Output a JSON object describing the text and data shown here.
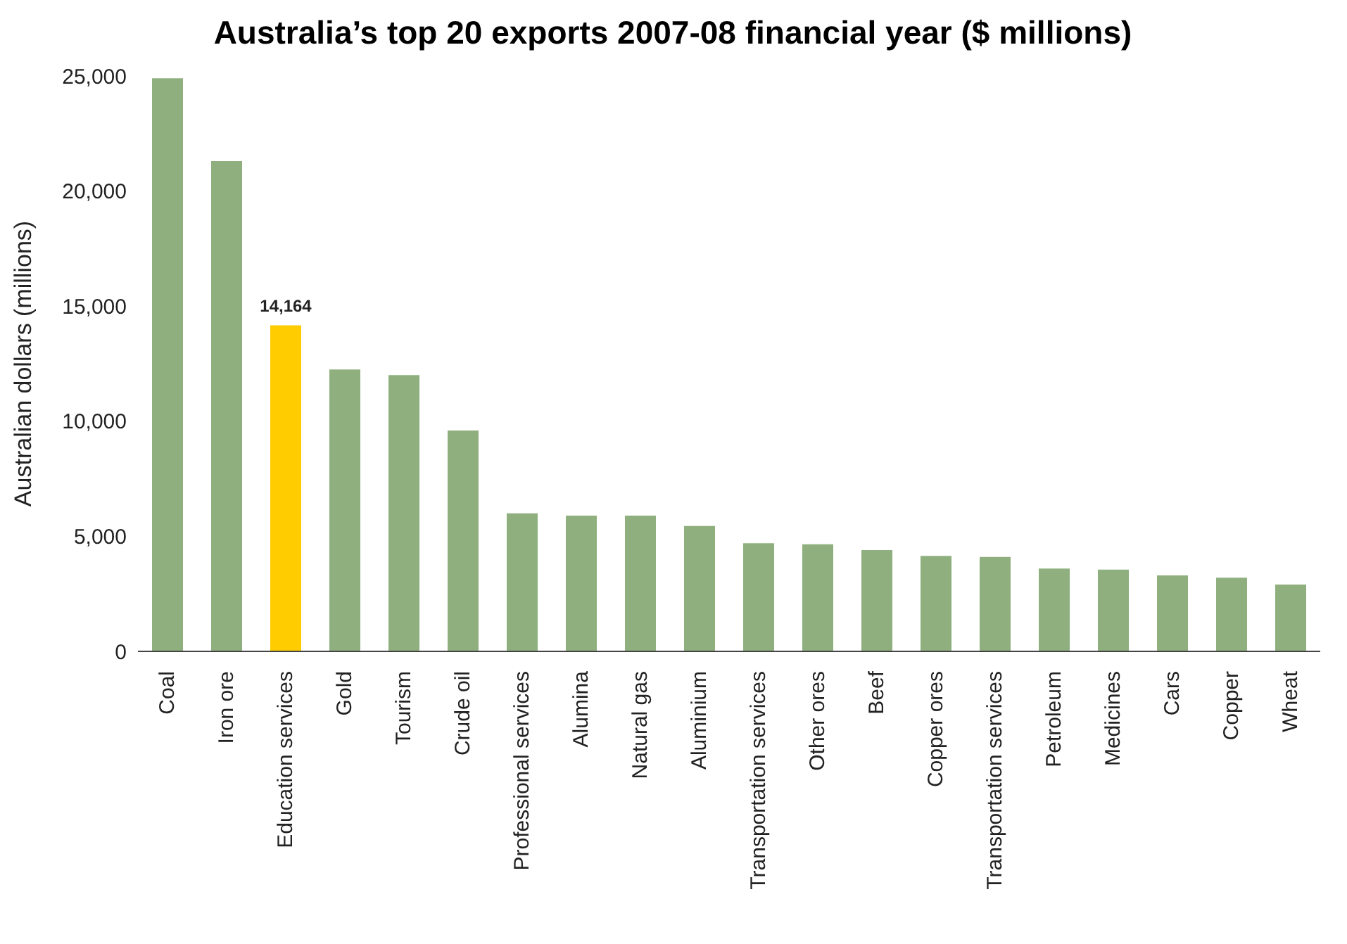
{
  "chart_data": {
    "type": "bar",
    "title": "Australia’s top 20 exports 2007-08 financial year ($ millions)",
    "ylabel": "Australian dollars (millions)",
    "categories": [
      "Coal",
      "Iron ore",
      "Education services",
      "Gold",
      "Tourism",
      "Crude oil",
      "Professional services",
      "Alumina",
      "Natural gas",
      "Aluminium",
      "Transportation services",
      "Other ores",
      "Beef",
      "Copper ores",
      "Transportation services",
      "Petroleum",
      "Medicines",
      "Cars",
      "Copper",
      "Wheat"
    ],
    "values": [
      24900,
      21300,
      14164,
      12250,
      12000,
      9600,
      6000,
      5900,
      5900,
      5450,
      4700,
      4650,
      4400,
      4150,
      4100,
      3600,
      3550,
      3300,
      3200,
      2900
    ],
    "colors": [
      "#8fb07e",
      "#8fb07e",
      "#ffcc00",
      "#8fb07e",
      "#8fb07e",
      "#8fb07e",
      "#8fb07e",
      "#8fb07e",
      "#8fb07e",
      "#8fb07e",
      "#8fb07e",
      "#8fb07e",
      "#8fb07e",
      "#8fb07e",
      "#8fb07e",
      "#8fb07e",
      "#8fb07e",
      "#8fb07e",
      "#8fb07e",
      "#8fb07e"
    ],
    "value_labels": [
      null,
      null,
      "14,164",
      null,
      null,
      null,
      null,
      null,
      null,
      null,
      null,
      null,
      null,
      null,
      null,
      null,
      null,
      null,
      null,
      null
    ],
    "ylim": [
      0,
      25000
    ],
    "yticks": [
      0,
      {
        "value": 5000,
        "label": "5,000"
      },
      {
        "value": 10000,
        "label": "10,000"
      },
      {
        "value": 15000,
        "label": "15,000"
      },
      {
        "value": 20000,
        "label": "20,000"
      },
      {
        "value": 25000,
        "label": "25,000"
      }
    ],
    "grid": false,
    "legend": false
  }
}
